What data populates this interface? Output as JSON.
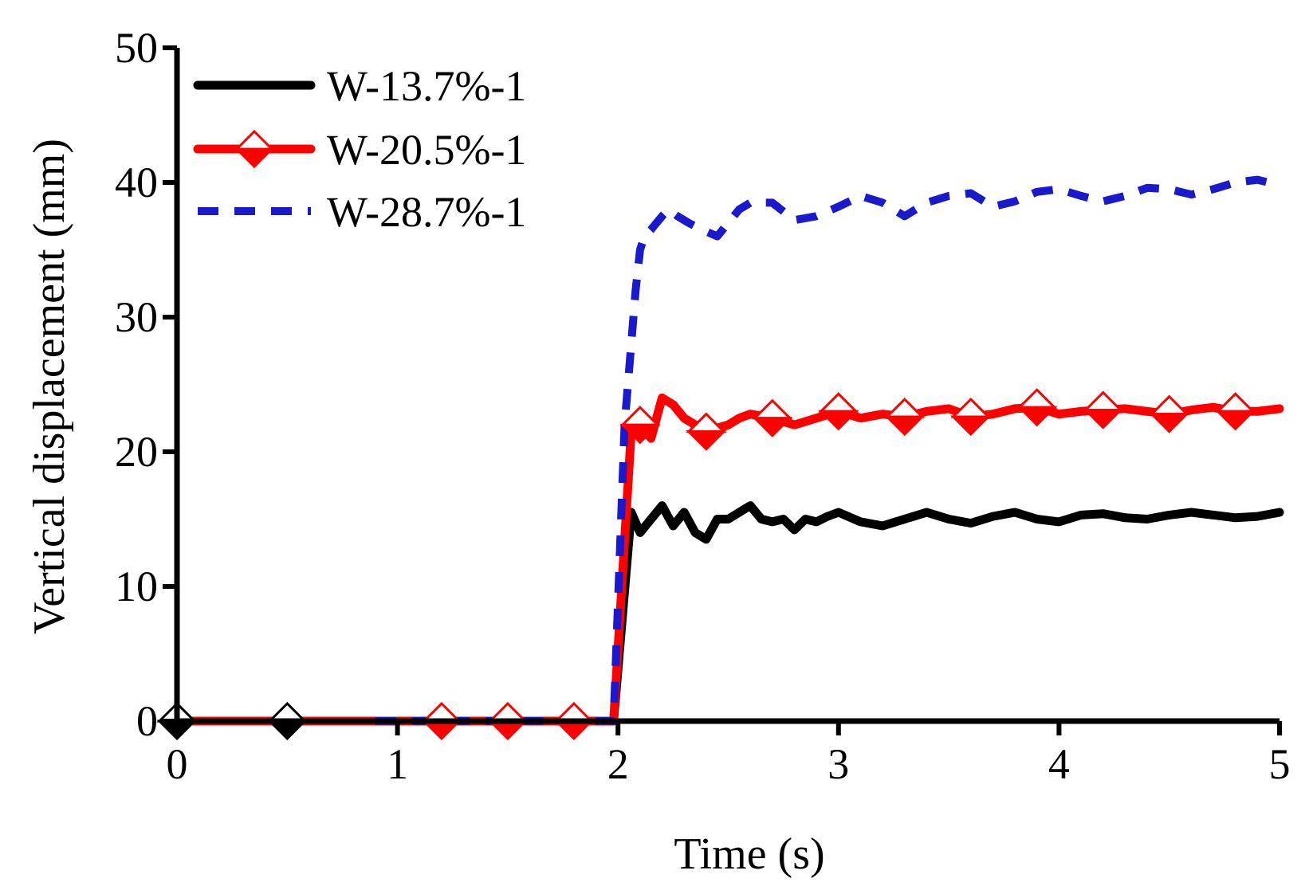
{
  "chart_data": {
    "type": "line",
    "title": "",
    "xlabel": "Time (s)",
    "ylabel": "Vertical displacement (mm)",
    "xlim": [
      0,
      5
    ],
    "ylim": [
      0,
      50
    ],
    "xticks": [
      "0",
      "1",
      "2",
      "3",
      "4",
      "5"
    ],
    "yticks": [
      "0",
      "10",
      "20",
      "30",
      "40",
      "50"
    ],
    "grid": false,
    "legend_position": "top-left",
    "series": [
      {
        "name": "W-13.7%-1",
        "color": "#000000",
        "style": "solid",
        "marker": "none",
        "x": [
          0,
          0.5,
          1.0,
          1.5,
          1.98,
          2.06,
          2.1,
          2.15,
          2.2,
          2.25,
          2.3,
          2.35,
          2.4,
          2.45,
          2.5,
          2.55,
          2.6,
          2.65,
          2.7,
          2.75,
          2.8,
          2.85,
          2.9,
          2.95,
          3.0,
          3.1,
          3.2,
          3.3,
          3.4,
          3.5,
          3.6,
          3.7,
          3.8,
          3.9,
          4.0,
          4.1,
          4.2,
          4.3,
          4.4,
          4.5,
          4.6,
          4.7,
          4.8,
          4.9,
          5.0
        ],
        "y": [
          0,
          0,
          0,
          0,
          0,
          15.5,
          14.0,
          15.0,
          16.0,
          14.5,
          15.5,
          14.0,
          13.5,
          15.0,
          15.0,
          15.5,
          16.0,
          15.0,
          14.8,
          15.0,
          14.2,
          15.0,
          14.8,
          15.2,
          15.5,
          14.8,
          14.5,
          15.0,
          15.5,
          15.0,
          14.7,
          15.2,
          15.5,
          15.0,
          14.8,
          15.3,
          15.4,
          15.1,
          15.0,
          15.3,
          15.5,
          15.3,
          15.1,
          15.2,
          15.5
        ]
      },
      {
        "name": "W-20.5%-1",
        "color": "#ff0000",
        "style": "solid",
        "marker": "diamond",
        "x": [
          0,
          0.5,
          0.9,
          1.2,
          1.5,
          1.8,
          1.98,
          2.06,
          2.1,
          2.15,
          2.2,
          2.25,
          2.3,
          2.35,
          2.4,
          2.5,
          2.55,
          2.6,
          2.7,
          2.8,
          2.9,
          3.0,
          3.1,
          3.2,
          3.3,
          3.4,
          3.5,
          3.6,
          3.7,
          3.8,
          3.9,
          4.0,
          4.1,
          4.2,
          4.3,
          4.4,
          4.5,
          4.6,
          4.7,
          4.8,
          4.9,
          5.0
        ],
        "y": [
          0,
          0,
          0,
          0,
          0,
          0,
          0,
          21.5,
          22.0,
          21.0,
          24.0,
          23.5,
          22.5,
          22.0,
          21.5,
          22.0,
          22.5,
          22.8,
          22.5,
          22.0,
          22.5,
          23.0,
          22.5,
          22.8,
          22.6,
          23.0,
          23.2,
          22.6,
          22.8,
          23.2,
          23.3,
          22.8,
          23.0,
          23.1,
          23.2,
          23.0,
          22.8,
          23.1,
          23.3,
          23.0,
          23.0,
          23.2
        ]
      },
      {
        "name": "W-28.7%-1",
        "color": "#1a1acc",
        "style": "dashed",
        "marker": "none",
        "x": [
          0.9,
          1.0,
          1.5,
          1.98,
          2.03,
          2.06,
          2.08,
          2.1,
          2.12,
          2.15,
          2.2,
          2.23,
          2.27,
          2.32,
          2.38,
          2.45,
          2.5,
          2.55,
          2.6,
          2.7,
          2.8,
          2.9,
          3.0,
          3.1,
          3.2,
          3.3,
          3.4,
          3.5,
          3.6,
          3.7,
          3.8,
          3.9,
          4.0,
          4.1,
          4.2,
          4.3,
          4.4,
          4.5,
          4.6,
          4.7,
          4.8,
          4.9,
          5.0
        ],
        "y": [
          0,
          0,
          0,
          0,
          22.0,
          28.0,
          32.0,
          35.0,
          36.0,
          36.5,
          37.5,
          38.0,
          37.5,
          37.0,
          36.5,
          36.0,
          37.0,
          38.0,
          38.5,
          38.5,
          37.2,
          37.5,
          38.2,
          39.0,
          38.5,
          37.5,
          38.5,
          39.0,
          39.2,
          38.2,
          38.6,
          39.3,
          39.5,
          39.0,
          38.6,
          39.0,
          39.6,
          39.5,
          39.1,
          39.5,
          40.0,
          40.2,
          39.8
        ]
      }
    ]
  }
}
